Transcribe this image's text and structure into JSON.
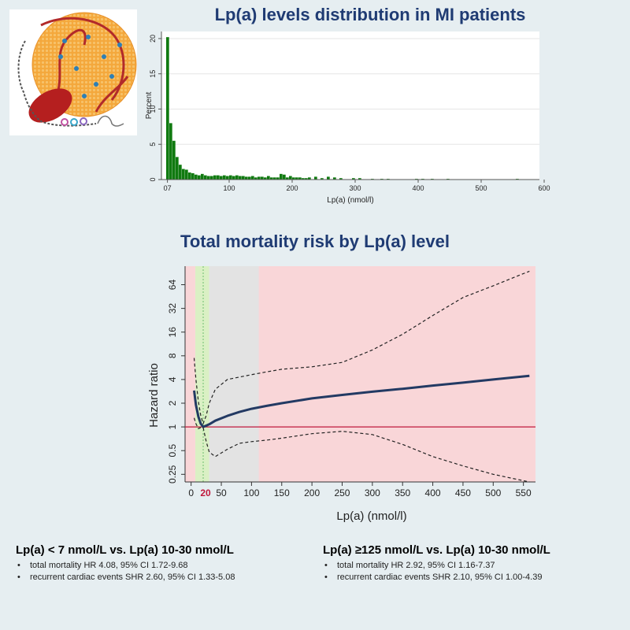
{
  "title_top": "Lp(a) levels distribution in MI patients",
  "title_bottom": "Total mortality risk by Lp(a) level",
  "chart_data": [
    {
      "type": "bar",
      "name": "histogram",
      "xlabel": "Lp(a) (nmol/l)",
      "ylabel": "Percent",
      "x_tick_labels": [
        "07",
        "100",
        "200",
        "300",
        "400",
        "500",
        "600"
      ],
      "x_ticks": [
        7,
        100,
        200,
        300,
        400,
        500,
        600
      ],
      "y_ticks": [
        0,
        5,
        10,
        15,
        20
      ],
      "xlim": [
        0,
        600
      ],
      "ylim": [
        0,
        21
      ],
      "bin_width": 5,
      "bins_x": [
        5,
        10,
        15,
        20,
        25,
        30,
        35,
        40,
        45,
        50,
        55,
        60,
        65,
        70,
        75,
        80,
        85,
        90,
        95,
        100,
        105,
        110,
        115,
        120,
        125,
        130,
        135,
        140,
        145,
        150,
        155,
        160,
        165,
        170,
        175,
        180,
        185,
        190,
        195,
        200,
        205,
        210,
        215,
        220,
        225,
        230,
        240,
        250,
        260,
        270,
        280,
        300,
        310,
        330,
        345,
        355,
        400,
        410,
        425,
        450,
        560
      ],
      "values": [
        20.2,
        8.0,
        5.5,
        3.2,
        2.1,
        1.5,
        1.4,
        1.0,
        0.9,
        0.7,
        0.6,
        0.8,
        0.6,
        0.5,
        0.5,
        0.6,
        0.6,
        0.5,
        0.6,
        0.5,
        0.6,
        0.5,
        0.6,
        0.5,
        0.5,
        0.4,
        0.4,
        0.5,
        0.3,
        0.4,
        0.4,
        0.3,
        0.5,
        0.3,
        0.3,
        0.3,
        0.8,
        0.7,
        0.3,
        0.5,
        0.3,
        0.3,
        0.3,
        0.2,
        0.2,
        0.3,
        0.4,
        0.2,
        0.4,
        0.3,
        0.2,
        0.2,
        0.2,
        0.1,
        0.1,
        0.1,
        0.1,
        0.1,
        0.1,
        0.1,
        0.1
      ],
      "color": "#107a10"
    },
    {
      "type": "line",
      "name": "hazard ratio",
      "xlabel": "Lp(a) (nmol/l)",
      "ylabel": "Hazard ratio",
      "y_scale": "log2",
      "x_ticks": [
        0,
        50,
        100,
        150,
        200,
        250,
        300,
        350,
        400,
        450,
        500,
        550
      ],
      "x_tick_labels": [
        "0",
        "50",
        "100",
        "150",
        "200",
        "250",
        "300",
        "350",
        "400",
        "450",
        "500",
        "550"
      ],
      "x_highlight_tick": {
        "value": 20,
        "label": "20",
        "color": "#c0183c"
      },
      "y_ticks": [
        0.25,
        0.5,
        1,
        2,
        4,
        8,
        16,
        32,
        64
      ],
      "y_tick_labels": [
        "0.25",
        "0.5",
        "1",
        "2",
        "4",
        "8",
        "16",
        "32",
        "64"
      ],
      "xlim": [
        -10,
        570
      ],
      "ylim": [
        0.2,
        110
      ],
      "reference_line": {
        "y": 1,
        "color": "#c0183c"
      },
      "regions": [
        {
          "x": [
            -10,
            7
          ],
          "color": "#f9d6d8"
        },
        {
          "x": [
            7,
            30
          ],
          "color": "#daf0c4"
        },
        {
          "x": [
            30,
            112
          ],
          "color": "#e3e3e3"
        },
        {
          "x": [
            112,
            570
          ],
          "color": "#f9d6d8"
        }
      ],
      "reference_vline": {
        "x": 20,
        "color": "#6fbf6f"
      },
      "series": [
        {
          "role": "estimate",
          "x": [
            5,
            8,
            12,
            16,
            20,
            30,
            40,
            60,
            80,
            100,
            125,
            150,
            200,
            250,
            300,
            350,
            400,
            450,
            500,
            560
          ],
          "y": [
            2.9,
            1.9,
            1.35,
            1.1,
            1.0,
            1.08,
            1.2,
            1.38,
            1.55,
            1.7,
            1.85,
            2.0,
            2.3,
            2.55,
            2.8,
            3.05,
            3.35,
            3.65,
            4.0,
            4.45
          ],
          "color": "#233a63"
        },
        {
          "role": "upper 95% CI",
          "x": [
            5,
            8,
            12,
            16,
            20,
            25,
            30,
            40,
            60,
            80,
            100,
            125,
            150,
            200,
            250,
            300,
            350,
            400,
            450,
            500,
            560
          ],
          "y": [
            7.5,
            4.0,
            2.1,
            1.4,
            1.1,
            1.4,
            2.0,
            3.0,
            4.0,
            4.3,
            4.6,
            5.0,
            5.4,
            5.8,
            6.6,
            9.5,
            15,
            26,
            44,
            62,
            95
          ],
          "color": "#222222"
        },
        {
          "role": "lower 95% CI",
          "x": [
            5,
            8,
            12,
            16,
            20,
            25,
            30,
            40,
            60,
            80,
            100,
            125,
            150,
            200,
            250,
            300,
            350,
            400,
            450,
            500,
            560
          ],
          "y": [
            1.3,
            1.1,
            0.95,
            0.98,
            0.98,
            0.65,
            0.48,
            0.42,
            0.52,
            0.62,
            0.65,
            0.68,
            0.72,
            0.82,
            0.88,
            0.8,
            0.6,
            0.42,
            0.32,
            0.25,
            0.2
          ],
          "color": "#222222"
        }
      ]
    }
  ],
  "findings": [
    {
      "heading": "Lp(a) < 7 nmol/L vs. Lp(a) 10-30 nmol/L",
      "bullets": [
        "total mortality HR 4.08, 95% CI 1.72-9.68",
        "recurrent cardiac events SHR 2.60, 95% CI 1.33-5.08"
      ]
    },
    {
      "heading": "Lp(a) ≥125 nmol/L vs. Lp(a) 10-30 nmol/L",
      "bullets": [
        "total mortality HR 2.92, 95% CI 1.16-7.37",
        "recurrent cardiac events SHR 2.10, 95% CI 1.00-4.39"
      ]
    }
  ],
  "colors": {
    "title": "#1f3b73",
    "background": "#e6eef1",
    "particle_core": "#f2a43a",
    "particle_apo": "#c0392b",
    "particle_dots": "#2f7fb5"
  },
  "icons": [
    "lipoprotein-a-particle-icon"
  ]
}
